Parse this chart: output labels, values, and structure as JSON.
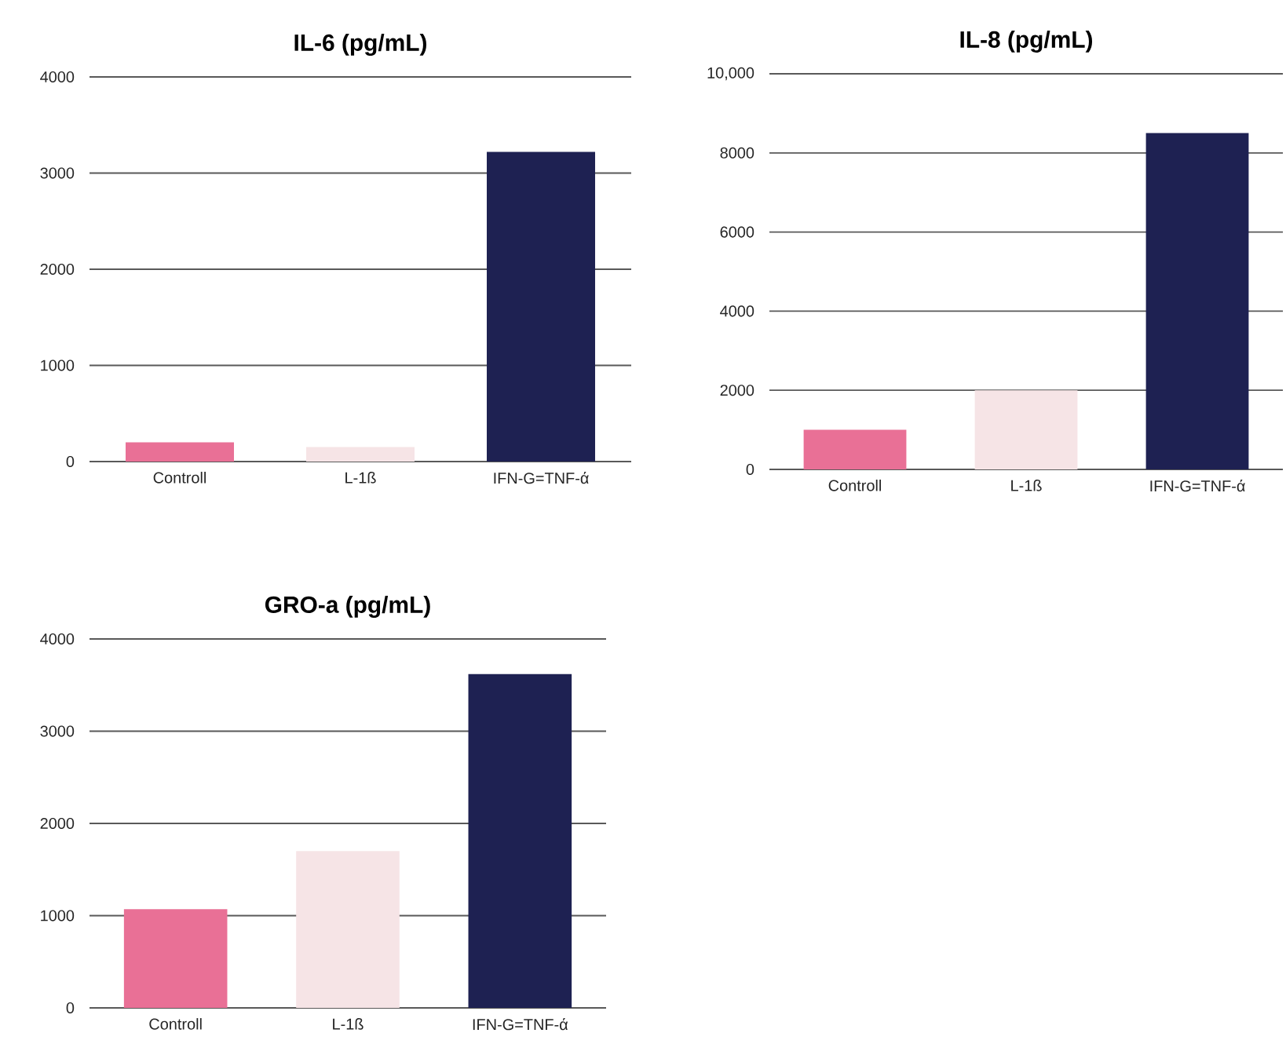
{
  "chart_data": [
    {
      "type": "bar",
      "title": "IL-6 (pg/mL)",
      "categories": [
        "Controll",
        "L-1ß",
        "IFN-G=TNF-ά"
      ],
      "values": [
        200,
        150,
        3220
      ],
      "colors": [
        "#e97096",
        "#f6e4e6",
        "#1e2152"
      ],
      "ylim": [
        0,
        4000
      ],
      "yticks": [
        0,
        1000,
        2000,
        3000,
        4000
      ],
      "grid": "y"
    },
    {
      "type": "bar",
      "title": "IL-8 (pg/mL)",
      "categories": [
        "Controll",
        "L-1ß",
        "IFN-G=TNF-ά"
      ],
      "values": [
        1000,
        2000,
        8500
      ],
      "colors": [
        "#e97096",
        "#f6e4e6",
        "#1e2152"
      ],
      "ylim": [
        0,
        10000
      ],
      "yticks": [
        0,
        2000,
        4000,
        6000,
        8000,
        {
          "value": 10000,
          "label": "10,000"
        }
      ],
      "grid": "y"
    },
    {
      "type": "bar",
      "title": "GRO-a (pg/mL)",
      "categories": [
        "Controll",
        "L-1ß",
        "IFN-G=TNF-ά"
      ],
      "values": [
        1070,
        1700,
        3620
      ],
      "colors": [
        "#e97096",
        "#f6e4e6",
        "#1e2152"
      ],
      "ylim": [
        0,
        4000
      ],
      "yticks": [
        0,
        1000,
        2000,
        3000,
        4000
      ],
      "grid": "y"
    }
  ]
}
